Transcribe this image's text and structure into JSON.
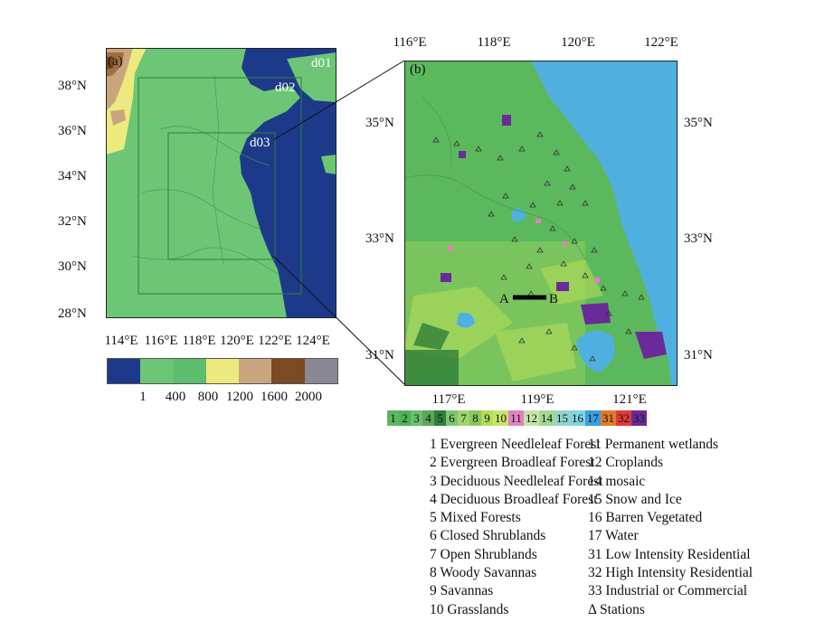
{
  "panel_a": {
    "label": "(a)",
    "domains": [
      "d01",
      "d02",
      "d03"
    ],
    "lat_labels": [
      "38°N",
      "36°N",
      "34°N",
      "32°N",
      "30°N",
      "28°N"
    ],
    "lon_labels": [
      "114°E",
      "116°E",
      "118°E",
      "120°E",
      "122°E",
      "124°E"
    ],
    "elevation_legend": {
      "colors": [
        "#1d3a8a",
        "#6cc675",
        "#5cbd6f",
        "#ecea7e",
        "#c9a57d",
        "#7a4a22",
        "#8b8794"
      ],
      "values": [
        "1",
        "400",
        "800",
        "1200",
        "1600",
        "2000"
      ]
    }
  },
  "panel_b": {
    "label": "(b)",
    "top_lon_labels": [
      "116°E",
      "118°E",
      "120°E",
      "122°E"
    ],
    "bottom_lon_labels": [
      "117°E",
      "119°E",
      "121°E"
    ],
    "left_lat_labels": [
      "35°N",
      "33°N",
      "31°N"
    ],
    "right_lat_labels": [
      "35°N",
      "33°N",
      "31°N"
    ],
    "section_start": "A",
    "section_end": "B"
  },
  "landuse_colorbar": [
    {
      "code": "1",
      "color": "#5cb85c"
    },
    {
      "code": "2",
      "color": "#4fb15a"
    },
    {
      "code": "3",
      "color": "#69c06d"
    },
    {
      "code": "4",
      "color": "#5aa85a"
    },
    {
      "code": "5",
      "color": "#2f7f3a"
    },
    {
      "code": "6",
      "color": "#7bc96f"
    },
    {
      "code": "7",
      "color": "#9fd46d"
    },
    {
      "code": "8",
      "color": "#86c95c"
    },
    {
      "code": "9",
      "color": "#b3dc5a"
    },
    {
      "code": "10",
      "color": "#c8e36a"
    },
    {
      "code": "11",
      "color": "#e67fc2"
    },
    {
      "code": "12",
      "color": "#c6e4a8"
    },
    {
      "code": "14",
      "color": "#a4d88f"
    },
    {
      "code": "15",
      "color": "#8fd6c8"
    },
    {
      "code": "16",
      "color": "#7fd4e0"
    },
    {
      "code": "17",
      "color": "#3aa0e0"
    },
    {
      "code": "31",
      "color": "#e07a2a"
    },
    {
      "code": "32",
      "color": "#e03a3a"
    },
    {
      "code": "33",
      "color": "#6a2a9a"
    }
  ],
  "landuse_descriptions_left": [
    "1 Evergreen Needleleaf Forest",
    "2 Evergreen Broadleaf Forest",
    "3 Deciduous Needleleaf Forest",
    "4 Deciduous Broadleaf Forest",
    "5 Mixed Forests",
    "6 Closed Shrublands",
    "7 Open Shrublands",
    "8 Woody Savannas",
    "9 Savannas",
    "10 Grasslands"
  ],
  "landuse_descriptions_right": [
    "11 Permanent wetlands",
    "12 Croplands",
    "14 mosaic",
    "15 Snow and Ice",
    "16 Barren Vegetated",
    "17 Water",
    "31 Low Intensity Residential",
    "32 High Intensity Residential",
    "33 Industrial or Commercial",
    "Δ Stations"
  ]
}
